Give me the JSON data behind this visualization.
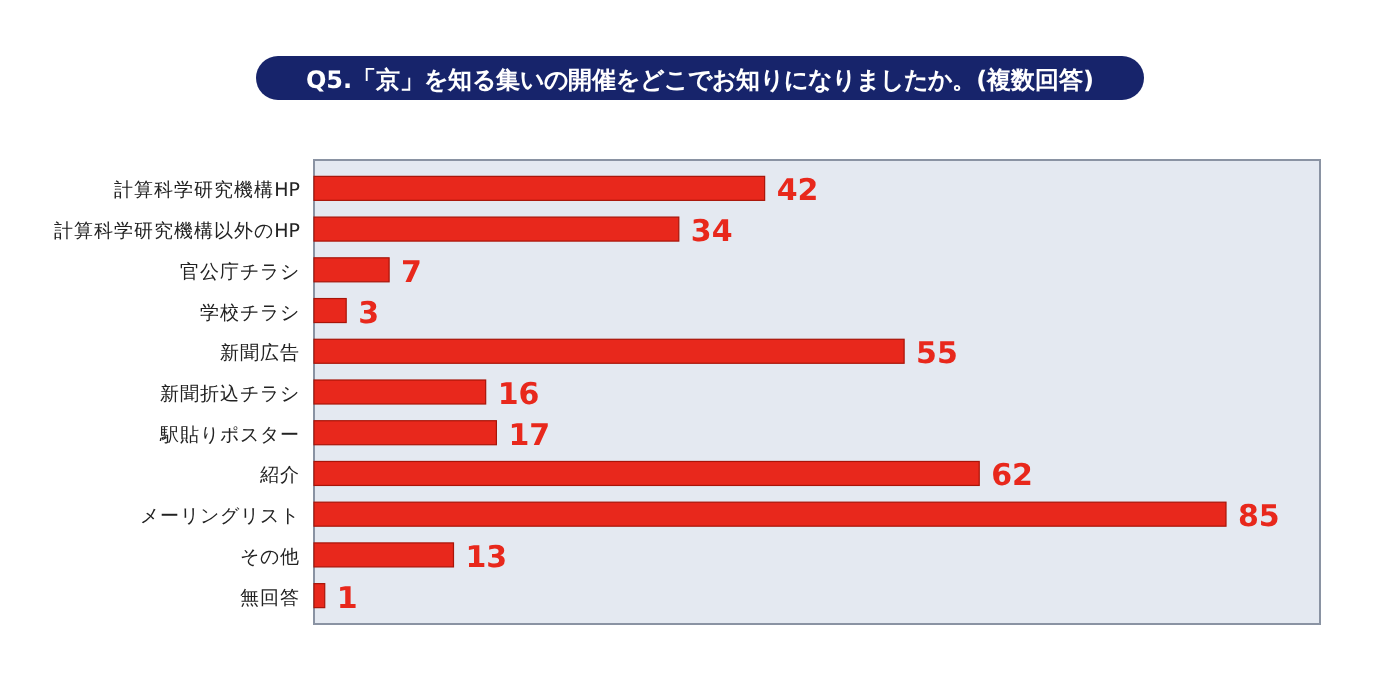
{
  "chart_data": {
    "type": "bar",
    "orientation": "horizontal",
    "title": "Q5.「京」を知る集いの開催をどこでお知りになりましたか。(複数回答)",
    "categories": [
      "計算科学研究機構HP",
      "計算科学研究機構以外のHP",
      "官公庁チラシ",
      "学校チラシ",
      "新聞広告",
      "新聞折込チラシ",
      "駅貼りポスター",
      "紹介",
      "メーリングリスト",
      "その他",
      "無回答"
    ],
    "values": [
      42,
      34,
      7,
      3,
      55,
      16,
      17,
      62,
      85,
      13,
      1
    ],
    "color": "#e8281c",
    "data_labels": true
  }
}
